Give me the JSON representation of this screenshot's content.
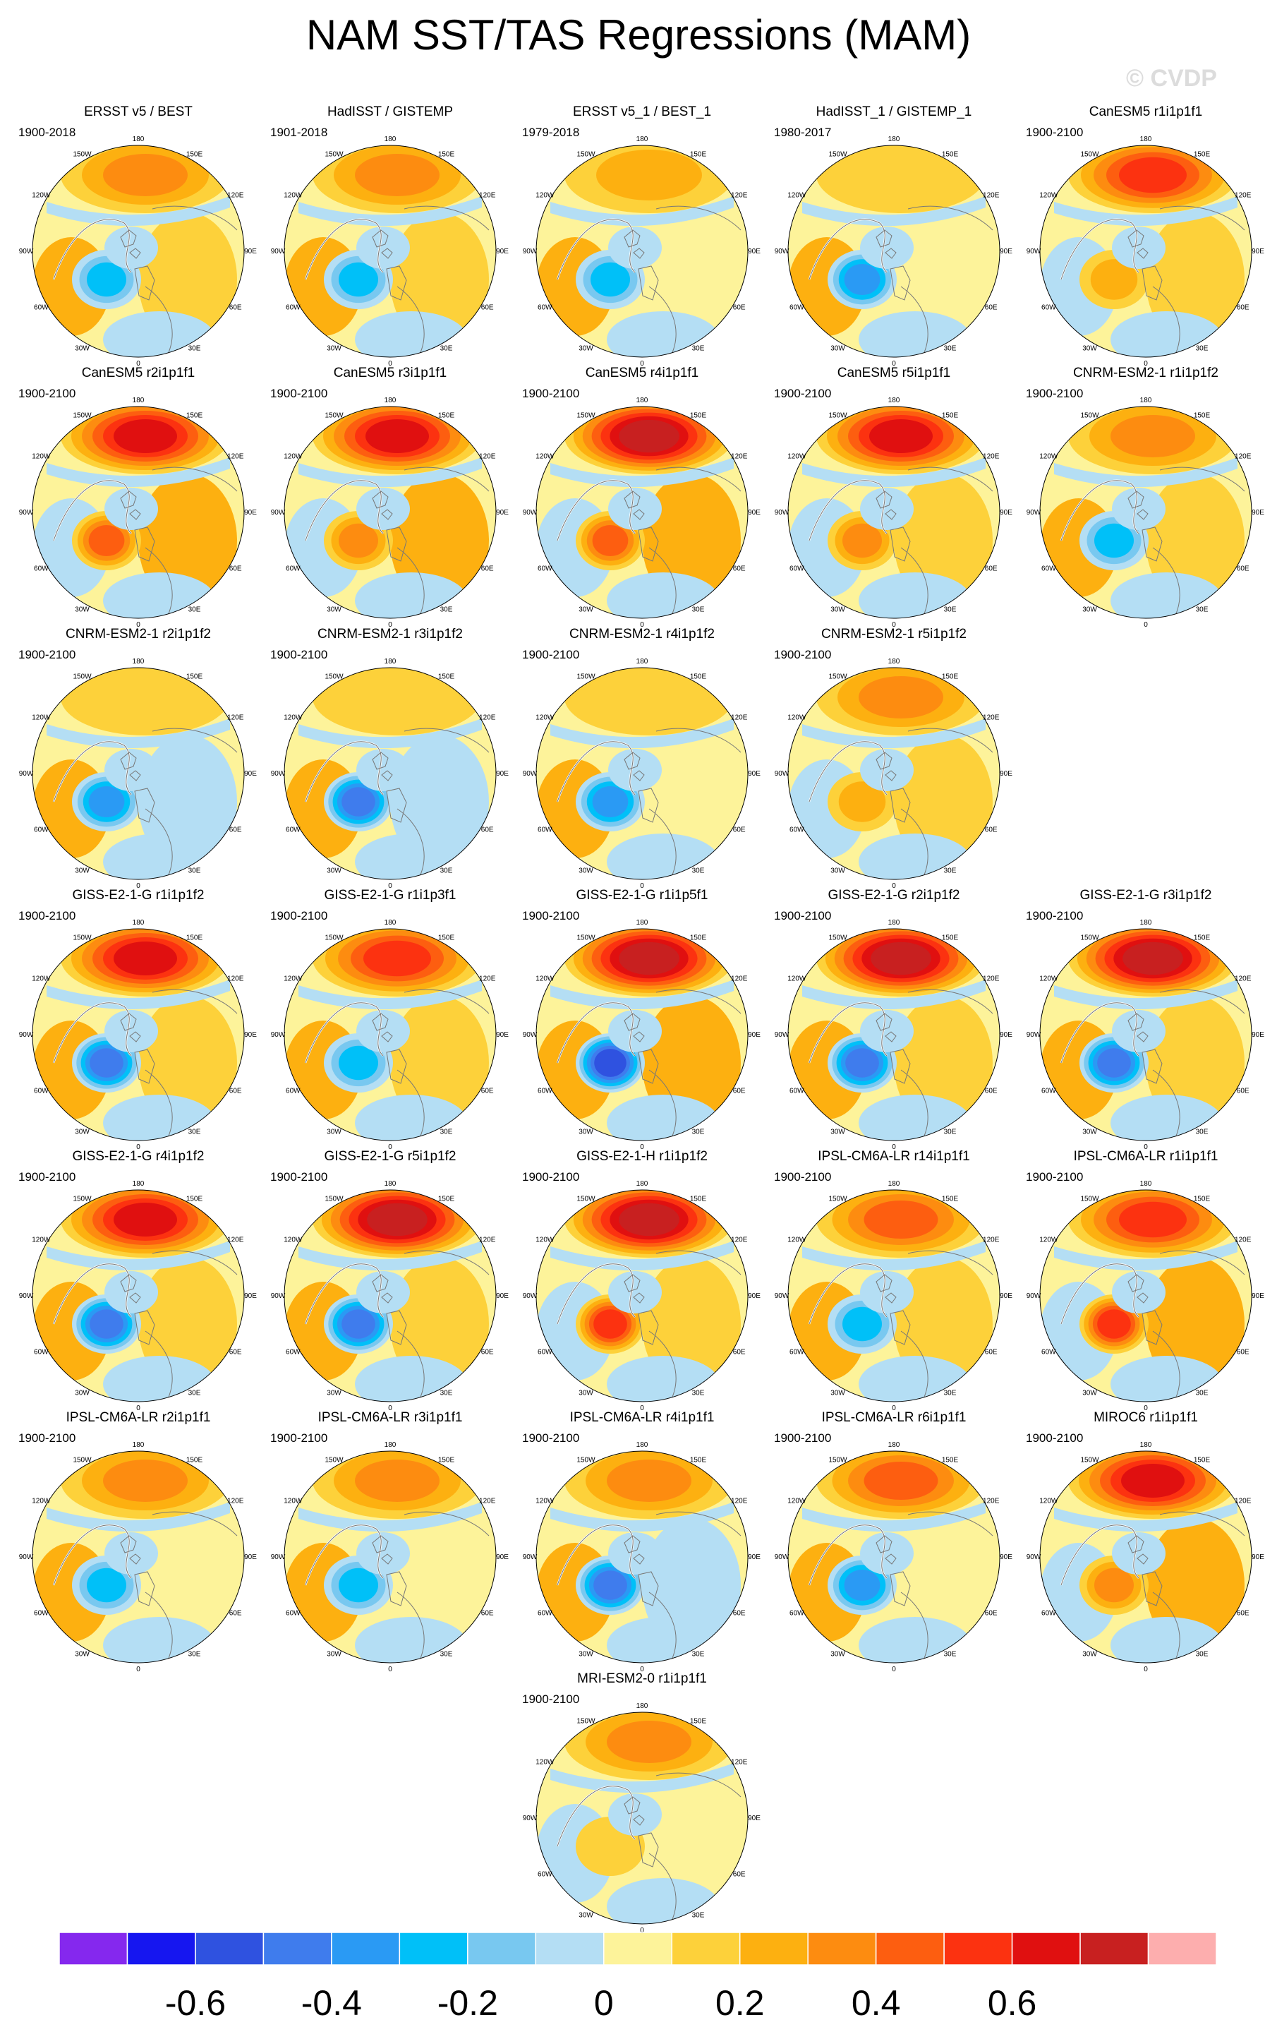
{
  "figure": {
    "title": "NAM SST/TAS Regressions (MAM)",
    "watermark": "© CVDP"
  },
  "map": {
    "projection": "polar-stereographic-north",
    "longitude_labels": [
      {
        "text": "180",
        "lon": 180
      },
      {
        "text": "150E",
        "lon": 150
      },
      {
        "text": "120E",
        "lon": 120
      },
      {
        "text": "90E",
        "lon": 90
      },
      {
        "text": "60E",
        "lon": 60
      },
      {
        "text": "30E",
        "lon": 30
      },
      {
        "text": "0",
        "lon": 0
      },
      {
        "text": "30W",
        "lon": -30
      },
      {
        "text": "60W",
        "lon": -60
      },
      {
        "text": "90W",
        "lon": -90
      },
      {
        "text": "120W",
        "lon": -120
      },
      {
        "text": "150W",
        "lon": -150
      }
    ]
  },
  "panels": [
    {
      "title": "ERSST v5 / BEST",
      "period": "1900-2018",
      "row": 0,
      "col": 0,
      "pac": 0.3,
      "atl": -0.3,
      "eur": 0.1,
      "style": "obs"
    },
    {
      "title": "HadISST / GISTEMP",
      "period": "1901-2018",
      "row": 0,
      "col": 1,
      "pac": 0.3,
      "atl": -0.3,
      "eur": 0.1,
      "style": "obs"
    },
    {
      "title": "ERSST v5_1 / BEST_1",
      "period": "1979-2018",
      "row": 0,
      "col": 2,
      "pac": 0.2,
      "atl": -0.3,
      "eur": 0.05,
      "style": "obs"
    },
    {
      "title": "HadISST_1 / GISTEMP_1",
      "period": "1980-2017",
      "row": 0,
      "col": 3,
      "pac": 0.15,
      "atl": -0.35,
      "eur": 0.0,
      "style": "obs"
    },
    {
      "title": "CanESM5 r1i1p1f1",
      "period": "1900-2100",
      "row": 0,
      "col": 4,
      "pac": 0.55,
      "atl": 0.2,
      "eur": 0.15,
      "style": "model"
    },
    {
      "title": "CanESM5 r2i1p1f1",
      "period": "1900-2100",
      "row": 1,
      "col": 0,
      "pac": 0.65,
      "atl": 0.4,
      "eur": 0.2,
      "style": "model"
    },
    {
      "title": "CanESM5 r3i1p1f1",
      "period": "1900-2100",
      "row": 1,
      "col": 1,
      "pac": 0.65,
      "atl": 0.35,
      "eur": 0.2,
      "style": "model"
    },
    {
      "title": "CanESM5 r4i1p1f1",
      "period": "1900-2100",
      "row": 1,
      "col": 2,
      "pac": 0.7,
      "atl": 0.45,
      "eur": 0.2,
      "style": "model"
    },
    {
      "title": "CanESM5 r5i1p1f1",
      "period": "1900-2100",
      "row": 1,
      "col": 3,
      "pac": 0.6,
      "atl": 0.35,
      "eur": 0.15,
      "style": "model"
    },
    {
      "title": "CNRM-ESM2-1 r1i1p1f2",
      "period": "1900-2100",
      "row": 1,
      "col": 4,
      "pac": 0.35,
      "atl": -0.25,
      "eur": 0.15,
      "style": "model"
    },
    {
      "title": "CNRM-ESM2-1 r2i1p1f2",
      "period": "1900-2100",
      "row": 2,
      "col": 0,
      "pac": 0.15,
      "atl": -0.4,
      "eur": -0.05,
      "style": "model"
    },
    {
      "title": "CNRM-ESM2-1 r3i1p1f2",
      "period": "1900-2100",
      "row": 2,
      "col": 1,
      "pac": 0.15,
      "atl": -0.45,
      "eur": -0.05,
      "style": "model"
    },
    {
      "title": "CNRM-ESM2-1 r4i1p1f2",
      "period": "1900-2100",
      "row": 2,
      "col": 2,
      "pac": 0.15,
      "atl": -0.35,
      "eur": 0.0,
      "style": "model"
    },
    {
      "title": "CNRM-ESM2-1 r5i1p1f2",
      "period": "1900-2100",
      "row": 2,
      "col": 3,
      "pac": 0.35,
      "atl": 0.2,
      "eur": 0.15,
      "style": "model"
    },
    {
      "title": "GISS-E2-1-G r1i1p1f2",
      "period": "1900-2100",
      "row": 3,
      "col": 0,
      "pac": 0.6,
      "atl": -0.45,
      "eur": 0.15,
      "style": "model"
    },
    {
      "title": "GISS-E2-1-G r1i1p3f1",
      "period": "1900-2100",
      "row": 3,
      "col": 1,
      "pac": 0.55,
      "atl": -0.3,
      "eur": 0.15,
      "style": "model"
    },
    {
      "title": "GISS-E2-1-G r1i1p5f1",
      "period": "1900-2100",
      "row": 3,
      "col": 2,
      "pac": 0.75,
      "atl": -0.6,
      "eur": 0.2,
      "style": "model"
    },
    {
      "title": "GISS-E2-1-G r2i1p1f2",
      "period": "1900-2100",
      "row": 3,
      "col": 3,
      "pac": 0.7,
      "atl": -0.45,
      "eur": 0.15,
      "style": "model"
    },
    {
      "title": "GISS-E2-1-G r3i1p1f2",
      "period": "1900-2100",
      "row": 3,
      "col": 4,
      "pac": 0.7,
      "atl": -0.5,
      "eur": 0.15,
      "style": "model"
    },
    {
      "title": "GISS-E2-1-G r4i1p1f2",
      "period": "1900-2100",
      "row": 4,
      "col": 0,
      "pac": 0.65,
      "atl": -0.45,
      "eur": 0.15,
      "style": "model"
    },
    {
      "title": "GISS-E2-1-G r5i1p1f2",
      "period": "1900-2100",
      "row": 4,
      "col": 1,
      "pac": 0.7,
      "atl": -0.45,
      "eur": 0.15,
      "style": "model"
    },
    {
      "title": "GISS-E2-1-H r1i1p1f2",
      "period": "1900-2100",
      "row": 4,
      "col": 2,
      "pac": 0.7,
      "atl": 0.5,
      "eur": 0.15,
      "style": "model"
    },
    {
      "title": "IPSL-CM6A-LR r14i1p1f1",
      "period": "1900-2100",
      "row": 4,
      "col": 3,
      "pac": 0.4,
      "atl": -0.3,
      "eur": 0.1,
      "style": "model"
    },
    {
      "title": "IPSL-CM6A-LR r1i1p1f1",
      "period": "1900-2100",
      "row": 4,
      "col": 4,
      "pac": 0.55,
      "atl": 0.5,
      "eur": 0.25,
      "style": "model"
    },
    {
      "title": "IPSL-CM6A-LR r2i1p1f1",
      "period": "1900-2100",
      "row": 5,
      "col": 0,
      "pac": 0.3,
      "atl": -0.3,
      "eur": 0.05,
      "style": "model"
    },
    {
      "title": "IPSL-CM6A-LR r3i1p1f1",
      "period": "1900-2100",
      "row": 5,
      "col": 1,
      "pac": 0.35,
      "atl": -0.3,
      "eur": 0.05,
      "style": "model"
    },
    {
      "title": "IPSL-CM6A-LR r4i1p1f1",
      "period": "1900-2100",
      "row": 5,
      "col": 2,
      "pac": 0.3,
      "atl": -0.45,
      "eur": -0.1,
      "style": "model"
    },
    {
      "title": "IPSL-CM6A-LR r6i1p1f1",
      "period": "1900-2100",
      "row": 5,
      "col": 3,
      "pac": 0.4,
      "atl": -0.4,
      "eur": 0.05,
      "style": "model"
    },
    {
      "title": "MIROC6 r1i1p1f1",
      "period": "1900-2100",
      "row": 5,
      "col": 4,
      "pac": 0.6,
      "atl": 0.3,
      "eur": 0.2,
      "style": "model"
    },
    {
      "title": "MRI-ESM2-0 r1i1p1f1",
      "period": "1900-2100",
      "row": 6,
      "col": 2,
      "pac": 0.3,
      "atl": 0.1,
      "eur": 0.05,
      "style": "model"
    }
  ],
  "colorbar": {
    "bins": [
      {
        "lo": -0.8,
        "hi": -0.7,
        "color": "#8528ee"
      },
      {
        "lo": -0.7,
        "hi": -0.6,
        "color": "#1616f0"
      },
      {
        "lo": -0.6,
        "hi": -0.5,
        "color": "#2f52e0"
      },
      {
        "lo": -0.5,
        "hi": -0.4,
        "color": "#3f7ced"
      },
      {
        "lo": -0.4,
        "hi": -0.3,
        "color": "#2a9af4"
      },
      {
        "lo": -0.3,
        "hi": -0.2,
        "color": "#00c0f8"
      },
      {
        "lo": -0.2,
        "hi": -0.1,
        "color": "#78c8f0"
      },
      {
        "lo": -0.1,
        "hi": 0.0,
        "color": "#b4def4"
      },
      {
        "lo": 0.0,
        "hi": 0.1,
        "color": "#fdf39a"
      },
      {
        "lo": 0.1,
        "hi": 0.2,
        "color": "#fdd13a"
      },
      {
        "lo": 0.2,
        "hi": 0.3,
        "color": "#fdb010"
      },
      {
        "lo": 0.3,
        "hi": 0.4,
        "color": "#fd8c10"
      },
      {
        "lo": 0.4,
        "hi": 0.5,
        "color": "#fd5e10"
      },
      {
        "lo": 0.5,
        "hi": 0.6,
        "color": "#fc3210"
      },
      {
        "lo": 0.6,
        "hi": 0.7,
        "color": "#e01010"
      },
      {
        "lo": 0.7,
        "hi": 0.8,
        "color": "#c82020"
      },
      {
        "lo": 0.8,
        "hi": 0.9,
        "color": "#fdaeae"
      }
    ],
    "labels": [
      {
        "text": "-0.6",
        "value": -0.6
      },
      {
        "text": "-0.4",
        "value": -0.4
      },
      {
        "text": "-0.2",
        "value": -0.2
      },
      {
        "text": "0",
        "value": 0
      },
      {
        "text": "0.2",
        "value": 0.2
      },
      {
        "text": "0.4",
        "value": 0.4
      },
      {
        "text": "0.6",
        "value": 0.6
      }
    ]
  }
}
